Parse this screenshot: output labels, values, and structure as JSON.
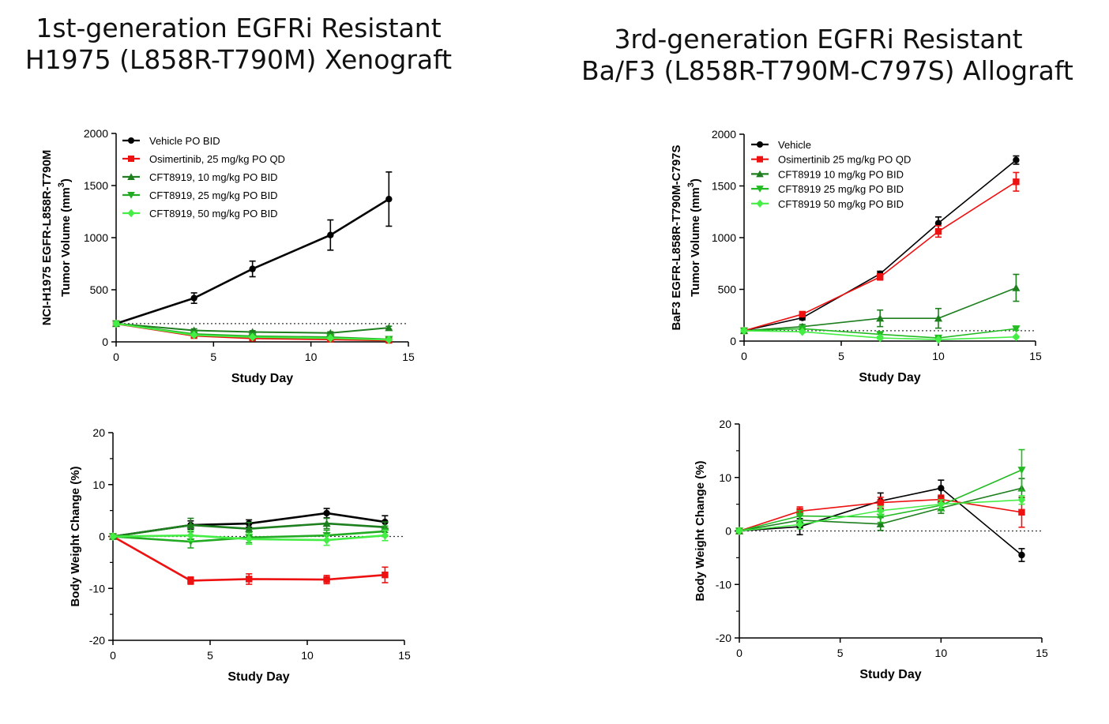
{
  "panels": [
    {
      "title_line1": "1st-generation EGFRi Resistant",
      "title_line2": "H1975 (L858R-T790M) Xenograft"
    },
    {
      "title_line1": "3rd-generation EGFRi Resistant",
      "title_line2": "Ba/F3 (L858R-T790M-C797S) Allograft"
    }
  ],
  "chart_data": [
    {
      "type": "line",
      "id": "h1975-tumor",
      "xlabel": "Study Day",
      "ylabel_line1": "NCI-H1975 EGFR-L858R-T790M",
      "ylabel_line2": "Tumor Volume (mm",
      "ylabel_sup": "3",
      "ylabel_close": ")",
      "xlim": [
        0,
        15
      ],
      "ylim": [
        0,
        2000
      ],
      "xticks": [
        0,
        5,
        10,
        15
      ],
      "yticks": [
        0,
        500,
        1000,
        1500,
        2000
      ],
      "baseline": 175,
      "grid": false,
      "legend_position": "top-left",
      "series": [
        {
          "name": "Vehicle PO BID",
          "color": "#000000",
          "marker": "circle",
          "width": 2.6,
          "x": [
            0,
            4,
            7,
            11,
            14
          ],
          "y": [
            175,
            420,
            700,
            1025,
            1370
          ],
          "err": [
            15,
            50,
            75,
            145,
            260
          ]
        },
        {
          "name": "Osimertinib, 25 mg/kg PO QD",
          "color": "#ee1111",
          "marker": "square",
          "width": 2.6,
          "x": [
            0,
            4,
            7,
            11,
            14
          ],
          "y": [
            175,
            60,
            35,
            25,
            15
          ],
          "err": [
            15,
            10,
            8,
            8,
            6
          ]
        },
        {
          "name": "CFT8919, 10 mg/kg PO BID",
          "color": "#1e7f1e",
          "marker": "triangle-up",
          "width": 2,
          "x": [
            0,
            4,
            7,
            11,
            14
          ],
          "y": [
            175,
            110,
            95,
            85,
            135
          ],
          "err": [
            15,
            15,
            12,
            12,
            15
          ]
        },
        {
          "name": "CFT8919, 25 mg/kg PO BID",
          "color": "#22aa22",
          "marker": "triangle-down",
          "width": 2,
          "x": [
            0,
            4,
            7,
            11,
            14
          ],
          "y": [
            175,
            75,
            55,
            45,
            25
          ],
          "err": [
            15,
            12,
            10,
            10,
            8
          ]
        },
        {
          "name": "CFT8919, 50 mg/kg PO BID",
          "color": "#44ee44",
          "marker": "diamond",
          "width": 2,
          "x": [
            0,
            4,
            7,
            11,
            14
          ],
          "y": [
            175,
            65,
            45,
            35,
            20
          ],
          "err": [
            15,
            10,
            8,
            8,
            6
          ]
        }
      ]
    },
    {
      "type": "line",
      "id": "baf3-tumor",
      "xlabel": "Study Day",
      "ylabel_line1": "BaF3 EGFR-L858R-T790M-C797S",
      "ylabel_line2": "Tumor Volume (mm",
      "ylabel_sup": "3",
      "ylabel_close": ")",
      "xlim": [
        0,
        15
      ],
      "ylim": [
        0,
        2000
      ],
      "xticks": [
        0,
        5,
        10,
        15
      ],
      "yticks": [
        0,
        500,
        1000,
        1500,
        2000
      ],
      "baseline": 100,
      "grid": false,
      "legend_position": "top-left",
      "series": [
        {
          "name": "Vehicle",
          "color": "#000000",
          "marker": "circle",
          "width": 1.6,
          "x": [
            0,
            3,
            7,
            10,
            14
          ],
          "y": [
            100,
            225,
            650,
            1140,
            1750
          ],
          "err": [
            10,
            20,
            25,
            60,
            40
          ]
        },
        {
          "name": "Osimertinib 25 mg/kg PO QD",
          "color": "#ee1111",
          "marker": "square",
          "width": 1.6,
          "x": [
            0,
            3,
            7,
            10,
            14
          ],
          "y": [
            100,
            260,
            620,
            1060,
            1540
          ],
          "err": [
            10,
            20,
            30,
            55,
            90
          ]
        },
        {
          "name": "CFT8919 10 mg/kg PO BID",
          "color": "#1e7f1e",
          "marker": "triangle-up",
          "width": 1.6,
          "x": [
            0,
            3,
            7,
            10,
            14
          ],
          "y": [
            100,
            140,
            220,
            220,
            515
          ],
          "err": [
            10,
            20,
            80,
            95,
            130
          ]
        },
        {
          "name": "CFT8919 25 mg/kg PO BID",
          "color": "#22bb22",
          "marker": "triangle-down",
          "width": 1.6,
          "x": [
            0,
            3,
            7,
            10,
            14
          ],
          "y": [
            100,
            120,
            65,
            30,
            120
          ],
          "err": [
            10,
            15,
            20,
            10,
            15
          ]
        },
        {
          "name": "CFT8919 50 mg/kg PO BID",
          "color": "#44ee44",
          "marker": "diamond",
          "width": 1.6,
          "x": [
            0,
            3,
            7,
            10,
            14
          ],
          "y": [
            100,
            90,
            30,
            15,
            40
          ],
          "err": [
            10,
            10,
            10,
            5,
            8
          ]
        }
      ]
    },
    {
      "type": "line",
      "id": "h1975-bw",
      "xlabel": "Study Day",
      "ylabel_line1": "Body Weight Change (%)",
      "xlim": [
        0,
        15
      ],
      "ylim": [
        -20,
        20
      ],
      "xticks": [
        0,
        5,
        10,
        15
      ],
      "yticks": [
        -20,
        -10,
        0,
        10,
        20
      ],
      "minor_yticks": [
        -15,
        -5,
        5,
        15
      ],
      "baseline": 0,
      "grid": false,
      "series": [
        {
          "color": "#000000",
          "marker": "circle",
          "width": 2.6,
          "x": [
            0,
            4,
            7,
            11,
            14
          ],
          "y": [
            0,
            2.2,
            2.5,
            4.5,
            2.8
          ],
          "err": [
            0.2,
            0.8,
            0.7,
            0.9,
            1.2
          ]
        },
        {
          "color": "#ee1111",
          "marker": "square",
          "width": 2.6,
          "x": [
            0,
            4,
            7,
            11,
            14
          ],
          "y": [
            0,
            -8.5,
            -8.2,
            -8.3,
            -7.4
          ],
          "err": [
            0.2,
            0.7,
            1.0,
            0.8,
            1.5
          ]
        },
        {
          "color": "#1e7f1e",
          "marker": "triangle-up",
          "width": 2.6,
          "x": [
            0,
            4,
            7,
            11,
            14
          ],
          "y": [
            0,
            2.2,
            1.5,
            2.5,
            1.8
          ],
          "err": [
            0.2,
            1.3,
            1.2,
            1.0,
            1.0
          ]
        },
        {
          "color": "#22aa22",
          "marker": "triangle-down",
          "width": 2.6,
          "x": [
            0,
            4,
            7,
            11,
            14
          ],
          "y": [
            0,
            -1.0,
            -0.2,
            0.2,
            1.0
          ],
          "err": [
            0.2,
            1.2,
            1.0,
            1.0,
            1.0
          ]
        },
        {
          "color": "#44ee44",
          "marker": "diamond",
          "width": 2.6,
          "x": [
            0,
            4,
            7,
            11,
            14
          ],
          "y": [
            0,
            0.2,
            -0.5,
            -0.7,
            0.2
          ],
          "err": [
            0.2,
            1.0,
            1.0,
            1.0,
            1.0
          ]
        }
      ]
    },
    {
      "type": "line",
      "id": "baf3-bw",
      "xlabel": "Study Day",
      "ylabel_line1": "Body Weight Change (%)",
      "xlim": [
        0,
        15
      ],
      "ylim": [
        -20,
        20
      ],
      "xticks": [
        0,
        5,
        10,
        15
      ],
      "yticks": [
        -20,
        -10,
        0,
        10,
        20
      ],
      "minor_yticks": [
        -15,
        -5,
        5,
        15
      ],
      "baseline": 0,
      "grid": false,
      "series": [
        {
          "color": "#000000",
          "marker": "circle",
          "width": 1.6,
          "x": [
            0,
            3,
            7,
            10,
            14
          ],
          "y": [
            0,
            0.8,
            5.6,
            8.0,
            -4.5
          ],
          "err": [
            0.2,
            1.5,
            1.5,
            1.5,
            1.2
          ]
        },
        {
          "color": "#ee1111",
          "marker": "square",
          "width": 1.6,
          "x": [
            0,
            3,
            7,
            10,
            14
          ],
          "y": [
            0,
            3.7,
            5.3,
            5.9,
            3.5
          ],
          "err": [
            0.2,
            0.8,
            1.0,
            0.8,
            2.8
          ]
        },
        {
          "color": "#1e7f1e",
          "marker": "triangle-up",
          "width": 1.6,
          "x": [
            0,
            3,
            7,
            10,
            14
          ],
          "y": [
            0,
            2.0,
            1.3,
            4.3,
            8.0
          ],
          "err": [
            0.2,
            1.0,
            1.2,
            1.0,
            1.8
          ]
        },
        {
          "color": "#22bb22",
          "marker": "triangle-down",
          "width": 1.6,
          "x": [
            0,
            3,
            7,
            10,
            14
          ],
          "y": [
            0,
            2.8,
            2.6,
            4.8,
            11.4
          ],
          "err": [
            0.2,
            1.0,
            1.0,
            1.0,
            3.8
          ]
        },
        {
          "color": "#44ee44",
          "marker": "diamond",
          "width": 1.6,
          "x": [
            0,
            3,
            7,
            10,
            14
          ],
          "y": [
            0,
            1.2,
            3.8,
            5.0,
            5.8
          ],
          "err": [
            0.2,
            0.8,
            0.8,
            0.8,
            0.8
          ]
        }
      ]
    }
  ]
}
